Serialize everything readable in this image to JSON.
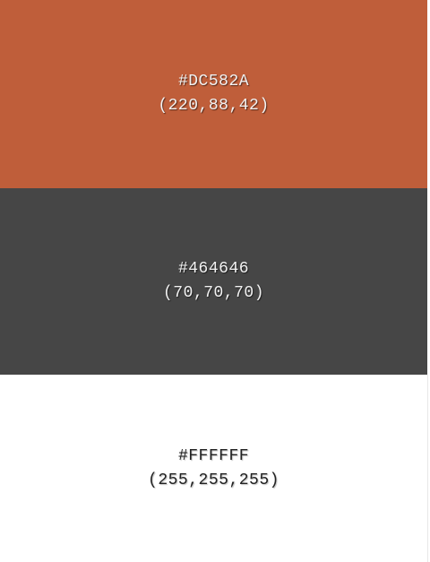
{
  "swatches": [
    {
      "hex": "#DC582A",
      "rgb": "(220,88,42)",
      "fill": "#BF5E3A"
    },
    {
      "hex": "#464646",
      "rgb": "(70,70,70)",
      "fill": "#464646"
    },
    {
      "hex": "#FFFFFF",
      "rgb": "(255,255,255)",
      "fill": "#FFFFFF"
    }
  ]
}
